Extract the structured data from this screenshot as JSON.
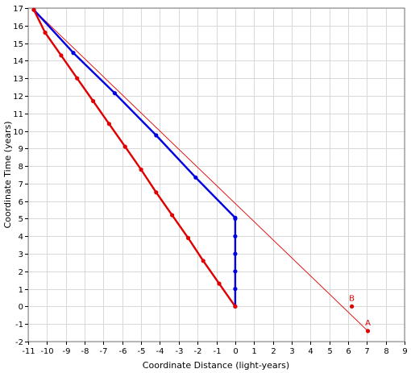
{
  "chart_data": {
    "type": "line",
    "title": "",
    "xlabel": "Coordinate Distance (light-years)",
    "ylabel": "Coordinate Time (years)",
    "xlim": [
      -11,
      9
    ],
    "ylim": [
      -2,
      17
    ],
    "xticks": [
      -11,
      -10,
      -9,
      -8,
      -7,
      -6,
      -5,
      -4,
      -3,
      -2,
      -1,
      0,
      1,
      2,
      3,
      4,
      5,
      6,
      7,
      8,
      9
    ],
    "yticks": [
      -2,
      -1,
      0,
      1,
      2,
      3,
      4,
      5,
      6,
      7,
      8,
      9,
      10,
      11,
      12,
      13,
      14,
      15,
      16,
      17
    ],
    "grid": true,
    "legend": "none",
    "series": [
      {
        "color": "#e00000",
        "style": "thin-line",
        "markers": false,
        "x": [
          -10.7,
          7.05
        ],
        "y": [
          16.9,
          -1.4
        ]
      },
      {
        "color": "#0000e0",
        "style": "thick-line-markers",
        "markers": true,
        "x": [
          0,
          0,
          0,
          0,
          0,
          0,
          0,
          -2.1,
          -4.2,
          -6.4,
          -8.6,
          -10.7
        ],
        "y": [
          0,
          1,
          2,
          3,
          4,
          5,
          5.05,
          7.35,
          9.75,
          12.15,
          14.45,
          16.9
        ]
      },
      {
        "color": "#e00000",
        "style": "thick-line-markers",
        "markers": true,
        "x": [
          0,
          -0.85,
          -1.7,
          -2.5,
          -3.35,
          -4.2,
          -5.0,
          -5.85,
          -6.7,
          -7.55,
          -8.4,
          -9.25,
          -10.1,
          -10.7
        ],
        "y": [
          0,
          1.3,
          2.6,
          3.9,
          5.2,
          6.5,
          7.8,
          9.1,
          10.4,
          11.7,
          13.0,
          14.3,
          15.6,
          16.9
        ]
      }
    ],
    "points": [
      {
        "label": "B",
        "x": 6.2,
        "y": 0,
        "color": "#e00000"
      },
      {
        "label": "A",
        "x": 7.05,
        "y": -1.4,
        "color": "#e00000"
      }
    ]
  }
}
